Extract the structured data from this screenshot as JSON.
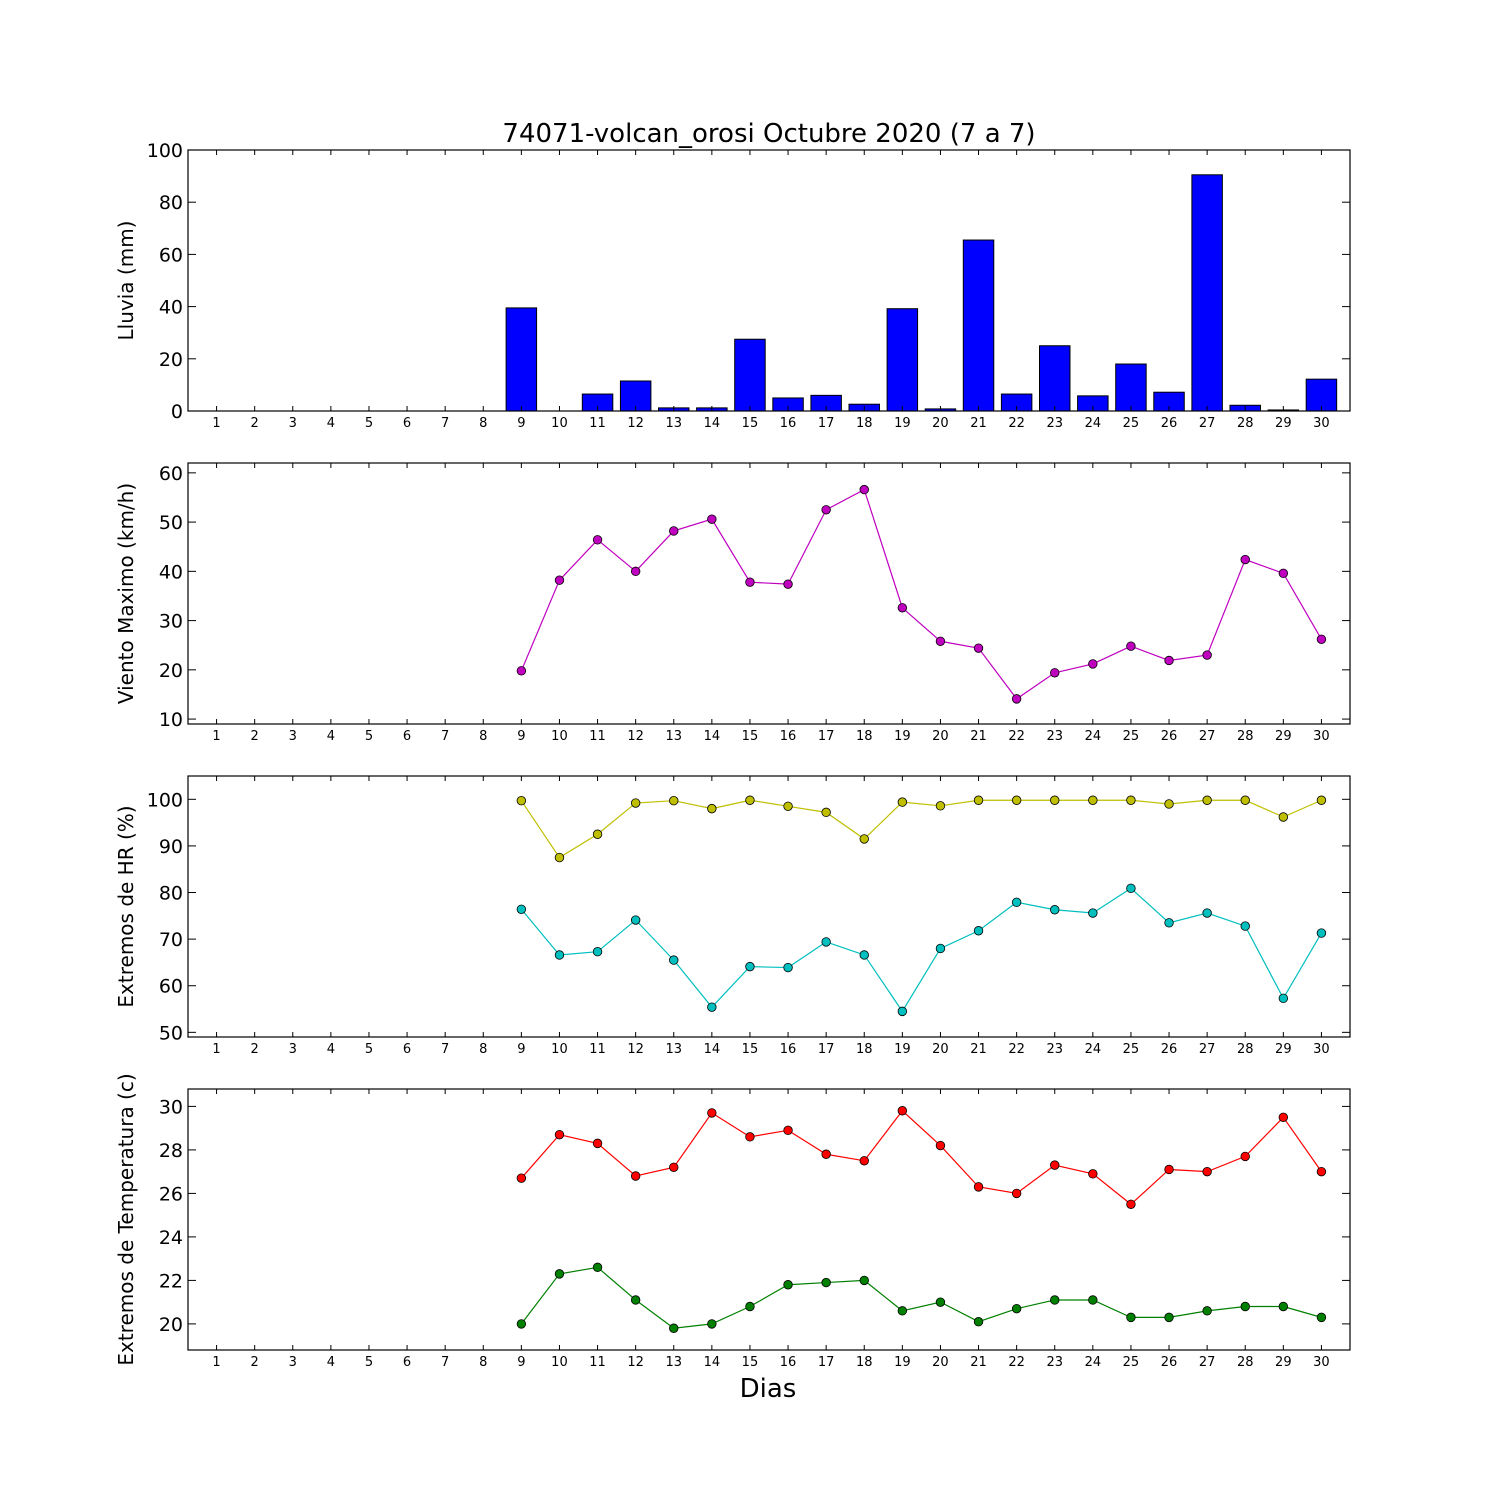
{
  "title": "74071-volcan_orosi Octubre 2020  (7 a 7)",
  "xlabel": "Dias",
  "days": [
    1,
    2,
    3,
    4,
    5,
    6,
    7,
    8,
    9,
    10,
    11,
    12,
    13,
    14,
    15,
    16,
    17,
    18,
    19,
    20,
    21,
    22,
    23,
    24,
    25,
    26,
    27,
    28,
    29,
    30
  ],
  "chart_data": [
    {
      "type": "bar",
      "ylabel": "Lluvia (mm)",
      "ylim": [
        0,
        100
      ],
      "yticks": [
        0,
        20,
        40,
        60,
        80,
        100
      ],
      "categories": [
        1,
        2,
        3,
        4,
        5,
        6,
        7,
        8,
        9,
        10,
        11,
        12,
        13,
        14,
        15,
        16,
        17,
        18,
        19,
        20,
        21,
        22,
        23,
        24,
        25,
        26,
        27,
        28,
        29,
        30
      ],
      "color": "#0000ff",
      "values": [
        null,
        null,
        null,
        null,
        null,
        null,
        null,
        null,
        39.5,
        0,
        6.5,
        11.5,
        1.2,
        1.2,
        27.5,
        5,
        6,
        2.6,
        39.2,
        0.8,
        65.5,
        6.5,
        25,
        5.8,
        18,
        7.2,
        90.5,
        2.2,
        0.4,
        12.2
      ]
    },
    {
      "type": "line",
      "ylabel": "Viento Maximo (km/h)",
      "ylim": [
        9,
        62
      ],
      "yticks": [
        10,
        20,
        30,
        40,
        50,
        60
      ],
      "x": [
        1,
        2,
        3,
        4,
        5,
        6,
        7,
        8,
        9,
        10,
        11,
        12,
        13,
        14,
        15,
        16,
        17,
        18,
        19,
        20,
        21,
        22,
        23,
        24,
        25,
        26,
        27,
        28,
        29,
        30
      ],
      "series": [
        {
          "color": "#bf00bf",
          "values": [
            null,
            null,
            null,
            null,
            null,
            null,
            null,
            null,
            19.8,
            38.2,
            46.4,
            40,
            48.2,
            50.6,
            37.8,
            37.4,
            52.5,
            56.6,
            32.6,
            25.8,
            24.4,
            14.1,
            19.4,
            21.2,
            24.8,
            21.9,
            23,
            42.4,
            39.6,
            26.2
          ]
        }
      ]
    },
    {
      "type": "line",
      "ylabel": "Extremos de HR (%)",
      "ylim": [
        49,
        105
      ],
      "yticks": [
        50,
        60,
        70,
        80,
        90,
        100
      ],
      "x": [
        1,
        2,
        3,
        4,
        5,
        6,
        7,
        8,
        9,
        10,
        11,
        12,
        13,
        14,
        15,
        16,
        17,
        18,
        19,
        20,
        21,
        22,
        23,
        24,
        25,
        26,
        27,
        28,
        29,
        30
      ],
      "series": [
        {
          "color": "#bfbf00",
          "values": [
            null,
            null,
            null,
            null,
            null,
            null,
            null,
            null,
            99.7,
            87.5,
            92.5,
            99.2,
            99.7,
            98,
            99.8,
            98.5,
            97.2,
            91.5,
            99.4,
            98.6,
            99.8,
            99.8,
            99.8,
            99.8,
            99.8,
            99,
            99.8,
            99.8,
            96.2,
            99.8
          ]
        },
        {
          "color": "#00bfbf",
          "values": [
            null,
            null,
            null,
            null,
            null,
            null,
            null,
            null,
            76.4,
            66.6,
            67.3,
            74.1,
            65.5,
            55.4,
            64.1,
            63.9,
            69.4,
            66.6,
            54.5,
            68,
            71.8,
            77.9,
            76.3,
            75.6,
            80.9,
            73.5,
            75.6,
            72.8,
            57.3,
            71.3
          ]
        }
      ]
    },
    {
      "type": "line",
      "ylabel": "Extremos de Temperatura (c)",
      "ylim": [
        18.8,
        30.8
      ],
      "yticks": [
        20,
        22,
        24,
        26,
        28,
        30
      ],
      "x": [
        1,
        2,
        3,
        4,
        5,
        6,
        7,
        8,
        9,
        10,
        11,
        12,
        13,
        14,
        15,
        16,
        17,
        18,
        19,
        20,
        21,
        22,
        23,
        24,
        25,
        26,
        27,
        28,
        29,
        30
      ],
      "series": [
        {
          "color": "#ff0000",
          "values": [
            null,
            null,
            null,
            null,
            null,
            null,
            null,
            null,
            26.7,
            28.7,
            28.3,
            26.8,
            27.2,
            29.7,
            28.6,
            28.9,
            27.8,
            27.5,
            29.8,
            28.2,
            26.3,
            26,
            27.3,
            26.9,
            25.5,
            27.1,
            27,
            27.7,
            29.5,
            27
          ]
        },
        {
          "color": "#008000",
          "values": [
            null,
            null,
            null,
            null,
            null,
            null,
            null,
            null,
            20,
            22.3,
            22.6,
            21.1,
            19.8,
            20,
            20.8,
            21.8,
            21.9,
            22,
            20.6,
            21,
            20.1,
            20.7,
            21.1,
            21.1,
            20.3,
            20.3,
            20.6,
            20.8,
            20.8,
            20.3
          ]
        }
      ]
    }
  ]
}
